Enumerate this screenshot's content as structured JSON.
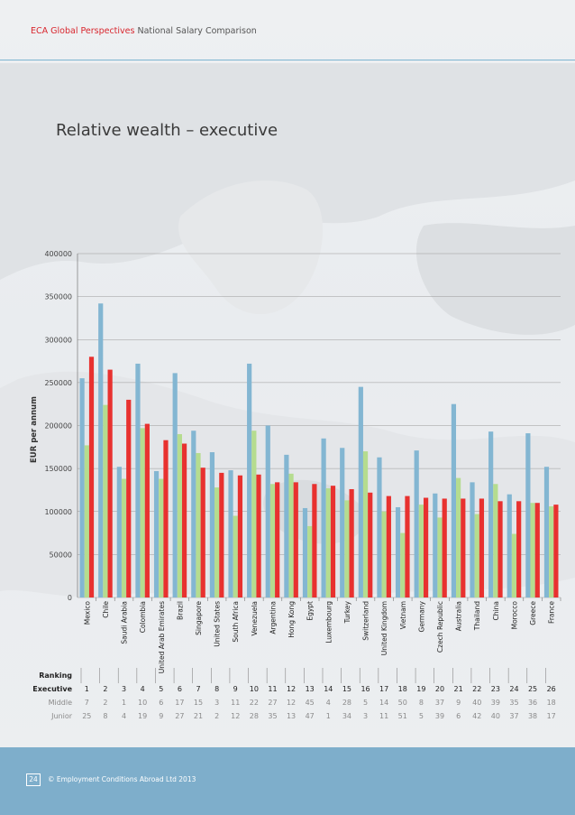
{
  "header": {
    "brand": "ECA Global Perspectives",
    "title": "National Salary Comparison"
  },
  "page_title": "Relative wealth – executive",
  "footer": {
    "page_number": "24",
    "copyright": "© Employment Conditions Abroad Ltd 2013"
  },
  "ranking_labels": {
    "heading": "Ranking",
    "executive": "Executive",
    "middle": "Middle",
    "junior": "Junior"
  },
  "colors": {
    "executive_bar": "#83b6d2",
    "middle_bar": "#b5dc8f",
    "junior_bar": "#e8312f",
    "accent": "#d9262e"
  },
  "chart_data": {
    "type": "bar",
    "ylabel": "EUR per  annum",
    "ylim": [
      0,
      400000
    ],
    "yticks": [
      0,
      50000,
      100000,
      150000,
      200000,
      250000,
      300000,
      350000,
      400000
    ],
    "categories": [
      "Mexico",
      "Chile",
      "Saudi Arabia",
      "Colombia",
      "United Arab Emirates",
      "Brazil",
      "Singapore",
      "United States",
      "South Africa",
      "Venezuela",
      "Argentina",
      "Hong Kong",
      "Egypt",
      "Luxembourg",
      "Turkey",
      "Switzerland",
      "United Kingdom",
      "Vietnam",
      "Germany",
      "Czech Republic",
      "Australia",
      "Thailand",
      "China",
      "Morocco",
      "Greece",
      "France"
    ],
    "series": [
      {
        "values": [
          255000,
          342000,
          152000,
          272000,
          147000,
          261000,
          194000,
          169000,
          148000,
          272000,
          200000,
          166000,
          104000,
          185000,
          174000,
          245000,
          163000,
          105000,
          171000,
          121000,
          225000,
          134000,
          193000,
          120000,
          191000,
          152000
        ]
      },
      {
        "values": [
          177000,
          224000,
          138000,
          197000,
          138000,
          190000,
          168000,
          128000,
          95000,
          194000,
          132000,
          144000,
          83000,
          127000,
          113000,
          170000,
          100000,
          75000,
          108000,
          93000,
          139000,
          97000,
          132000,
          74000,
          110000,
          106000
        ]
      },
      {
        "values": [
          280000,
          265000,
          230000,
          202000,
          183000,
          179000,
          151000,
          145000,
          142000,
          143000,
          134000,
          134000,
          132000,
          130000,
          126000,
          122000,
          118000,
          118000,
          116000,
          115000,
          115000,
          115000,
          112000,
          112000,
          110000,
          108000
        ]
      }
    ],
    "ranking": {
      "executive": [
        "1",
        "2",
        "3",
        "4",
        "5",
        "6",
        "7",
        "8",
        "9",
        "10",
        "11",
        "12",
        "13",
        "14",
        "15",
        "16",
        "17",
        "18",
        "19",
        "20",
        "21",
        "22",
        "23",
        "24",
        "25",
        "26"
      ],
      "middle": [
        "7",
        "2",
        "1",
        "10",
        "6",
        "17",
        "15",
        "3",
        "11",
        "22",
        "27",
        "12",
        "45",
        "4",
        "28",
        "5",
        "14",
        "50",
        "8",
        "37",
        "9",
        "40",
        "39",
        "35",
        "36",
        "18"
      ],
      "junior": [
        "25",
        "8",
        "4",
        "19",
        "9",
        "27",
        "21",
        "2",
        "12",
        "28",
        "35",
        "13",
        "47",
        "1",
        "34",
        "3",
        "11",
        "51",
        "5",
        "39",
        "6",
        "42",
        "40",
        "37",
        "38",
        "17"
      ]
    }
  }
}
